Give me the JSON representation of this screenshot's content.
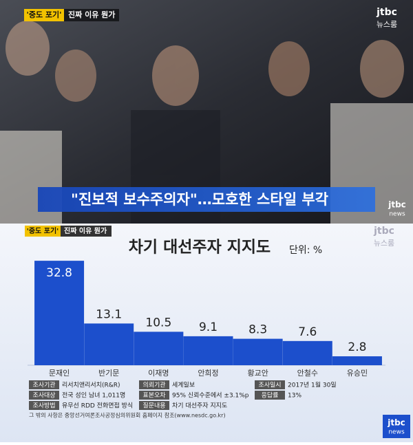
{
  "top_screen": {
    "tag_highlight": "'중도 포기'",
    "tag_text": "진짜 이유 뭔가",
    "logo": "jtbc",
    "logo_sub": "뉴스룸",
    "caption": "\"진보적 보수주의자\"…모호한 스타일 부각",
    "logo_bottom": "jtbc",
    "logo_bottom_sub": "news"
  },
  "bottom_screen": {
    "tag_highlight": "'중도 포기'",
    "tag_text": "진짜 이유 뭔가",
    "logo": "jtbc",
    "logo_sub": "뉴스룸",
    "survey": [
      [
        [
          "조사기관",
          "리서치앤리서치(R&R)"
        ],
        [
          "의뢰기관",
          "세계일보"
        ],
        [
          "조사일시",
          "2017년 1월 30일"
        ]
      ],
      [
        [
          "조사대상",
          "전국 성인 남녀 1,011명"
        ],
        [
          "표본오차",
          "95% 신뢰수준에서 ±3.1%p"
        ],
        [
          "응답률",
          "13%"
        ]
      ],
      [
        [
          "조사방법",
          "유무선 RDD 전화면접 방식"
        ],
        [
          "질문내용",
          "차기 대선주자 지지도"
        ]
      ]
    ],
    "footnote": "그 밖의 사항은 중앙선거여론조사공정심의위원회 홈페이지 참조(www.nesdc.go.kr)",
    "logo_bottom": "jtbc",
    "logo_bottom_sub": "news"
  },
  "chart_data": {
    "type": "bar",
    "title": "차기 대선주자 지지도",
    "unit": "단위: %",
    "categories": [
      "문재인",
      "반기문",
      "이재명",
      "안희정",
      "황교안",
      "안철수",
      "유승민"
    ],
    "values": [
      32.8,
      13.1,
      10.5,
      9.1,
      8.3,
      7.6,
      2.8
    ],
    "color": "#1c4fcc"
  }
}
